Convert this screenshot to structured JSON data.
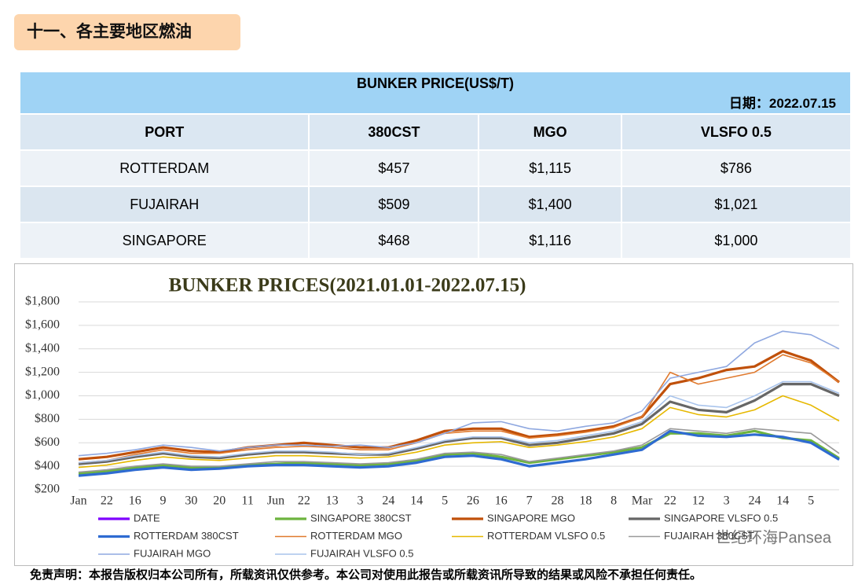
{
  "header": {
    "title": "十一、各主要地区燃油"
  },
  "table": {
    "title": "BUNKER PRICE(US$/T)",
    "date_label": "日期：",
    "date": "2022.07.15",
    "columns": [
      "PORT",
      "380CST",
      "MGO",
      "VLSFO 0.5"
    ],
    "rows": [
      [
        "ROTTERDAM",
        "$457",
        "$1,115",
        "$786"
      ],
      [
        "FUJAIRAH",
        "$509",
        "$1,400",
        "$1,021"
      ],
      [
        "SINGAPORE",
        "$468",
        "$1,116",
        "$1,000"
      ]
    ]
  },
  "chart_data": {
    "type": "line",
    "title": "BUNKER PRICES(2021.01.01-2022.07.15)",
    "categories": [
      "Jan",
      "22",
      "16",
      "9",
      "30",
      "20",
      "11",
      "Jun",
      "22",
      "13",
      "3",
      "24",
      "14",
      "5",
      "26",
      "16",
      "7",
      "28",
      "18",
      "8",
      "Mar",
      "22",
      "12",
      "3",
      "24",
      "14",
      "5",
      null
    ],
    "ylim": [
      200,
      1800
    ],
    "yticks": [
      {
        "value": 200,
        "label": "$200"
      },
      {
        "value": 400,
        "label": "$400"
      },
      {
        "value": 600,
        "label": "$600"
      },
      {
        "value": 800,
        "label": "$800"
      },
      {
        "value": 1000,
        "label": "$1,000"
      },
      {
        "value": 1200,
        "label": "$1,200"
      },
      {
        "value": 1400,
        "label": "$1,400"
      },
      {
        "value": 1600,
        "label": "$1,600"
      },
      {
        "value": 1800,
        "label": "$1,800"
      }
    ],
    "grid": true,
    "series": [
      {
        "name": "DATE",
        "color": "#7f00ff",
        "values": [
          null,
          null,
          null,
          null,
          null,
          null,
          null,
          null,
          null,
          null,
          null,
          null,
          null,
          null,
          null,
          null,
          null,
          null,
          null,
          null,
          null,
          null,
          null,
          null,
          null,
          null,
          null,
          null
        ]
      },
      {
        "name": "SINGAPORE 380CST",
        "color": "#6db33f",
        "values": [
          340,
          360,
          390,
          410,
          390,
          390,
          410,
          420,
          430,
          420,
          410,
          420,
          450,
          500,
          510,
          480,
          430,
          460,
          490,
          520,
          560,
          680,
          680,
          660,
          700,
          640,
          620,
          468
        ]
      },
      {
        "name": "SINGAPORE MGO",
        "color": "#c0500a",
        "values": [
          460,
          480,
          520,
          560,
          530,
          520,
          560,
          580,
          600,
          580,
          560,
          560,
          620,
          700,
          720,
          720,
          650,
          670,
          700,
          740,
          820,
          1100,
          1150,
          1220,
          1250,
          1380,
          1300,
          1116
        ]
      },
      {
        "name": "SINGAPORE VLSFO 0.5",
        "color": "#666666",
        "values": [
          420,
          440,
          480,
          510,
          480,
          470,
          500,
          520,
          520,
          510,
          500,
          500,
          550,
          610,
          640,
          640,
          580,
          600,
          640,
          680,
          760,
          950,
          880,
          860,
          960,
          1100,
          1100,
          1000
        ]
      },
      {
        "name": "ROTTERDAM 380CST",
        "color": "#2e6bd1",
        "values": [
          320,
          340,
          370,
          390,
          370,
          380,
          400,
          410,
          410,
          400,
          390,
          400,
          430,
          480,
          490,
          460,
          400,
          430,
          460,
          500,
          540,
          700,
          660,
          650,
          670,
          650,
          600,
          457
        ]
      },
      {
        "name": "ROTTERDAM MGO",
        "color": "#e07a2e",
        "values": [
          430,
          450,
          500,
          540,
          510,
          510,
          540,
          560,
          570,
          560,
          540,
          540,
          600,
          680,
          700,
          700,
          640,
          660,
          690,
          730,
          820,
          1200,
          1100,
          1150,
          1200,
          1350,
          1280,
          1115
        ]
      },
      {
        "name": "ROTTERDAM VLSFO 0.5",
        "color": "#e6b800",
        "values": [
          390,
          410,
          450,
          480,
          460,
          450,
          470,
          490,
          490,
          480,
          470,
          480,
          520,
          580,
          600,
          610,
          560,
          580,
          610,
          650,
          720,
          900,
          840,
          820,
          880,
          1000,
          920,
          786
        ]
      },
      {
        "name": "FUJAIRAH 380CST",
        "color": "#9a9a9a",
        "values": [
          350,
          370,
          400,
          420,
          400,
          400,
          420,
          440,
          440,
          430,
          420,
          430,
          460,
          510,
          520,
          500,
          440,
          470,
          500,
          530,
          580,
          720,
          700,
          680,
          720,
          700,
          680,
          509
        ]
      },
      {
        "name": "FUJAIRAH MGO",
        "color": "#8fa8e0",
        "values": [
          490,
          510,
          540,
          580,
          560,
          530,
          560,
          580,
          580,
          570,
          580,
          560,
          600,
          680,
          770,
          780,
          720,
          700,
          740,
          770,
          870,
          1150,
          1200,
          1250,
          1450,
          1550,
          1520,
          1400
        ]
      },
      {
        "name": "FUJAIRAH VLSFO 0.5",
        "color": "#a9c4ec",
        "values": [
          430,
          450,
          490,
          520,
          490,
          480,
          510,
          530,
          530,
          520,
          500,
          510,
          560,
          620,
          650,
          650,
          600,
          620,
          660,
          700,
          780,
          1000,
          920,
          900,
          1000,
          1120,
          1120,
          1021
        ]
      }
    ],
    "watermark": "世纪环海Pansea"
  },
  "footer": {
    "disclaimer": "免责声明：本报告版权归本公司所有，所载资讯仅供参考。本公司对使用此报告或所载资讯所导致的结果或风险不承担任何责任。"
  }
}
